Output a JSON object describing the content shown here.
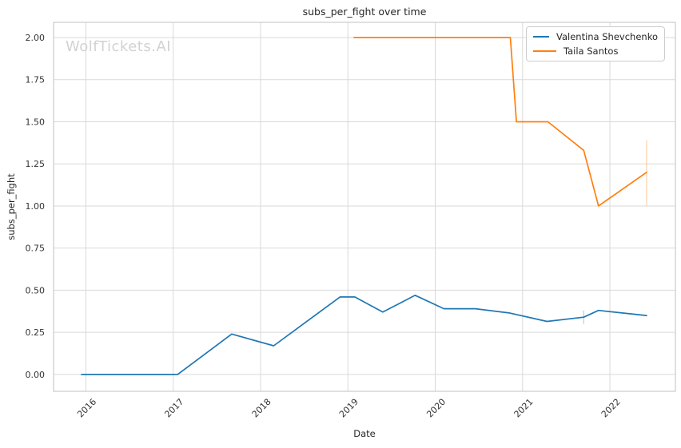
{
  "watermark": "WolfTickets.AI",
  "chart_data": {
    "type": "line",
    "title": "subs_per_fight over time",
    "xlabel": "Date",
    "ylabel": "subs_per_fight",
    "grid": true,
    "background": "#ffffff",
    "grid_color": "#d9d9d9",
    "spine_color": "#cccccc",
    "xlim": [
      2015.63,
      2022.75
    ],
    "ylim": [
      -0.1,
      2.09
    ],
    "x_ticks": {
      "values": [
        2016,
        2017,
        2018,
        2019,
        2020,
        2021,
        2022
      ],
      "labels": [
        "2016",
        "2017",
        "2018",
        "2019",
        "2020",
        "2021",
        "2022"
      ]
    },
    "y_ticks": {
      "values": [
        0.0,
        0.25,
        0.5,
        0.75,
        1.0,
        1.25,
        1.5,
        1.75,
        2.0
      ],
      "labels": [
        "0.00",
        "0.25",
        "0.50",
        "0.75",
        "1.00",
        "1.25",
        "1.50",
        "1.75",
        "2.00"
      ]
    },
    "legend": {
      "position": "upper right"
    },
    "series": [
      {
        "name": "Valentina Shevchenko",
        "color": "#1f77b4",
        "x": [
          2015.95,
          2017.05,
          2017.67,
          2018.15,
          2018.91,
          2019.08,
          2019.4,
          2019.77,
          2020.1,
          2020.46,
          2020.85,
          2021.28,
          2021.7,
          2021.87,
          2022.42
        ],
        "y": [
          0.0,
          0.0,
          0.24,
          0.17,
          0.46,
          0.46,
          0.37,
          0.47,
          0.39,
          0.39,
          0.365,
          0.315,
          0.34,
          0.38,
          0.35
        ],
        "error_bars": [
          {
            "x": 2021.7,
            "low": 0.3,
            "high": 0.38
          }
        ]
      },
      {
        "name": "Taila Santos",
        "color": "#ff7f0e",
        "x": [
          2019.07,
          2020.86,
          2020.93,
          2021.29,
          2021.7,
          2021.87,
          2022.42
        ],
        "y": [
          2.0,
          2.0,
          1.5,
          1.5,
          1.33,
          1.0,
          1.2
        ],
        "error_bars": [
          {
            "x": 2022.42,
            "low": 1.0,
            "high": 1.39
          }
        ]
      }
    ]
  }
}
